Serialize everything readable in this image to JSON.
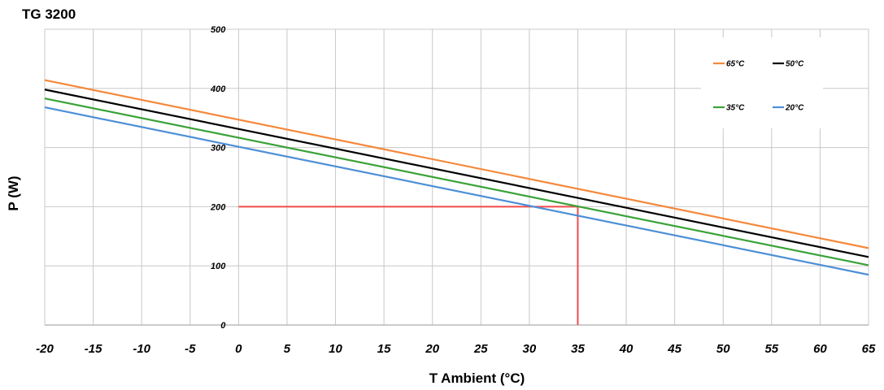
{
  "chart_data": {
    "type": "line",
    "title": "TG 3200",
    "xlabel": "T Ambient (°C)",
    "ylabel": "P (W)",
    "xlim": [
      -20,
      65
    ],
    "ylim": [
      0,
      500
    ],
    "x_ticks": [
      -20,
      -15,
      -10,
      -5,
      0,
      5,
      10,
      15,
      20,
      25,
      30,
      35,
      40,
      45,
      50,
      55,
      60,
      65
    ],
    "y_ticks": [
      0,
      100,
      200,
      300,
      400,
      500
    ],
    "grid": true,
    "legend_position": "top-right",
    "series": [
      {
        "name": "65°C",
        "color": "#f5883a",
        "x": [
          -20,
          65
        ],
        "y": [
          414,
          130
        ]
      },
      {
        "name": "50°C",
        "color": "#000000",
        "x": [
          -20,
          65
        ],
        "y": [
          398,
          115
        ]
      },
      {
        "name": "35°C",
        "color": "#3aa238",
        "x": [
          -20,
          65
        ],
        "y": [
          383,
          101
        ]
      },
      {
        "name": "20°C",
        "color": "#4d8fd6",
        "x": [
          -20,
          65
        ],
        "y": [
          368,
          85
        ]
      }
    ],
    "annotations": [
      {
        "type": "guide-line",
        "color": "#f24b4b",
        "x": [
          0,
          35,
          35
        ],
        "y": [
          200,
          200,
          0
        ]
      }
    ]
  }
}
